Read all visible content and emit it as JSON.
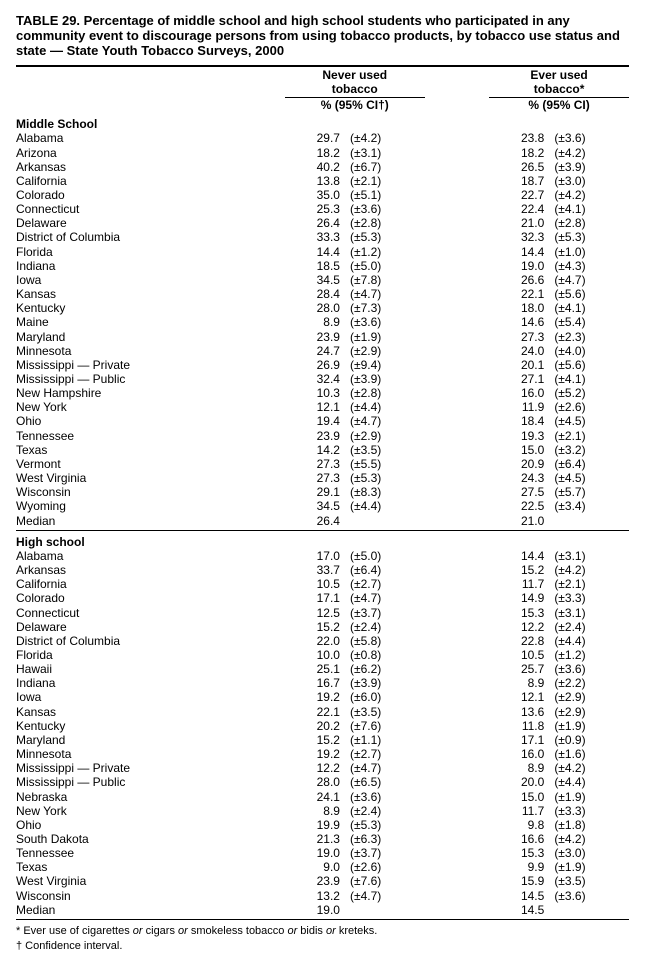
{
  "title": "TABLE 29. Percentage of middle school and high school students who participated in any community event to discourage persons from using tobacco products, by tobacco use status and state — State Youth Tobacco Surveys, 2000",
  "headers": {
    "never_label": "Never used tobacco",
    "ever_label": "Ever used tobacco*",
    "never_sub": "% (95% CI†)",
    "ever_sub": "% (95% CI)"
  },
  "sections": [
    {
      "label": "Middle School",
      "rows": [
        {
          "state": "Alabama",
          "np": "29.7",
          "nc": "(±4.2)",
          "ep": "23.8",
          "ec": "(±3.6)"
        },
        {
          "state": "Arizona",
          "np": "18.2",
          "nc": "(±3.1)",
          "ep": "18.2",
          "ec": "(±4.2)"
        },
        {
          "state": "Arkansas",
          "np": "40.2",
          "nc": "(±6.7)",
          "ep": "26.5",
          "ec": "(±3.9)"
        },
        {
          "state": "California",
          "np": "13.8",
          "nc": "(±2.1)",
          "ep": "18.7",
          "ec": "(±3.0)"
        },
        {
          "state": "Colorado",
          "np": "35.0",
          "nc": "(±5.1)",
          "ep": "22.7",
          "ec": "(±4.2)"
        },
        {
          "state": "Connecticut",
          "np": "25.3",
          "nc": "(±3.6)",
          "ep": "22.4",
          "ec": "(±4.1)"
        },
        {
          "state": "Delaware",
          "np": "26.4",
          "nc": "(±2.8)",
          "ep": "21.0",
          "ec": "(±2.8)"
        },
        {
          "state": "District of Columbia",
          "np": "33.3",
          "nc": "(±5.3)",
          "ep": "32.3",
          "ec": "(±5.3)"
        },
        {
          "state": "Florida",
          "np": "14.4",
          "nc": "(±1.2)",
          "ep": "14.4",
          "ec": "(±1.0)"
        },
        {
          "state": "Indiana",
          "np": "18.5",
          "nc": "(±5.0)",
          "ep": "19.0",
          "ec": "(±4.3)"
        },
        {
          "state": "Iowa",
          "np": "34.5",
          "nc": "(±7.8)",
          "ep": "26.6",
          "ec": "(±4.7)"
        },
        {
          "state": "Kansas",
          "np": "28.4",
          "nc": "(±4.7)",
          "ep": "22.1",
          "ec": "(±5.6)"
        },
        {
          "state": "Kentucky",
          "np": "28.0",
          "nc": "(±7.3)",
          "ep": "18.0",
          "ec": "(±4.1)"
        },
        {
          "state": "Maine",
          "np": "8.9",
          "nc": "(±3.6)",
          "ep": "14.6",
          "ec": "(±5.4)"
        },
        {
          "state": "Maryland",
          "np": "23.9",
          "nc": "(±1.9)",
          "ep": "27.3",
          "ec": "(±2.3)"
        },
        {
          "state": "Minnesota",
          "np": "24.7",
          "nc": "(±2.9)",
          "ep": "24.0",
          "ec": "(±4.0)"
        },
        {
          "state": "Mississippi — Private",
          "np": "26.9",
          "nc": "(±9.4)",
          "ep": "20.1",
          "ec": "(±5.6)"
        },
        {
          "state": "Mississippi — Public",
          "np": "32.4",
          "nc": "(±3.9)",
          "ep": "27.1",
          "ec": "(±4.1)"
        },
        {
          "state": "New Hampshire",
          "np": "10.3",
          "nc": "(±2.8)",
          "ep": "16.0",
          "ec": "(±5.2)"
        },
        {
          "state": "New York",
          "np": "12.1",
          "nc": "(±4.4)",
          "ep": "11.9",
          "ec": "(±2.6)"
        },
        {
          "state": "Ohio",
          "np": "19.4",
          "nc": "(±4.7)",
          "ep": "18.4",
          "ec": "(±4.5)"
        },
        {
          "state": "Tennessee",
          "np": "23.9",
          "nc": "(±2.9)",
          "ep": "19.3",
          "ec": "(±2.1)"
        },
        {
          "state": "Texas",
          "np": "14.2",
          "nc": "(±3.5)",
          "ep": "15.0",
          "ec": "(±3.2)"
        },
        {
          "state": "Vermont",
          "np": "27.3",
          "nc": "(±5.5)",
          "ep": "20.9",
          "ec": "(±6.4)"
        },
        {
          "state": "West Virginia",
          "np": "27.3",
          "nc": "(±5.3)",
          "ep": "24.3",
          "ec": "(±4.5)"
        },
        {
          "state": "Wisconsin",
          "np": "29.1",
          "nc": "(±8.3)",
          "ep": "27.5",
          "ec": "(±5.7)"
        },
        {
          "state": "Wyoming",
          "np": "34.5",
          "nc": "(±4.4)",
          "ep": "22.5",
          "ec": "(±3.4)"
        },
        {
          "state": "Median",
          "np": "26.4",
          "nc": "",
          "ep": "21.0",
          "ec": ""
        }
      ]
    },
    {
      "label": "High school",
      "rows": [
        {
          "state": "Alabama",
          "np": "17.0",
          "nc": "(±5.0)",
          "ep": "14.4",
          "ec": "(±3.1)"
        },
        {
          "state": "Arkansas",
          "np": "33.7",
          "nc": "(±6.4)",
          "ep": "15.2",
          "ec": "(±4.2)"
        },
        {
          "state": "California",
          "np": "10.5",
          "nc": "(±2.7)",
          "ep": "11.7",
          "ec": "(±2.1)"
        },
        {
          "state": "Colorado",
          "np": "17.1",
          "nc": "(±4.7)",
          "ep": "14.9",
          "ec": "(±3.3)"
        },
        {
          "state": "Connecticut",
          "np": "12.5",
          "nc": "(±3.7)",
          "ep": "15.3",
          "ec": "(±3.1)"
        },
        {
          "state": "Delaware",
          "np": "15.2",
          "nc": "(±2.4)",
          "ep": "12.2",
          "ec": "(±2.4)"
        },
        {
          "state": "District of Columbia",
          "np": "22.0",
          "nc": "(±5.8)",
          "ep": "22.8",
          "ec": "(±4.4)"
        },
        {
          "state": "Florida",
          "np": "10.0",
          "nc": "(±0.8)",
          "ep": "10.5",
          "ec": "(±1.2)"
        },
        {
          "state": "Hawaii",
          "np": "25.1",
          "nc": "(±6.2)",
          "ep": "25.7",
          "ec": "(±3.6)"
        },
        {
          "state": "Indiana",
          "np": "16.7",
          "nc": "(±3.9)",
          "ep": "8.9",
          "ec": "(±2.2)"
        },
        {
          "state": "Iowa",
          "np": "19.2",
          "nc": "(±6.0)",
          "ep": "12.1",
          "ec": "(±2.9)"
        },
        {
          "state": "Kansas",
          "np": "22.1",
          "nc": "(±3.5)",
          "ep": "13.6",
          "ec": "(±2.9)"
        },
        {
          "state": "Kentucky",
          "np": "20.2",
          "nc": "(±7.6)",
          "ep": "11.8",
          "ec": "(±1.9)"
        },
        {
          "state": "Maryland",
          "np": "15.2",
          "nc": "(±1.1)",
          "ep": "17.1",
          "ec": "(±0.9)"
        },
        {
          "state": "Minnesota",
          "np": "19.2",
          "nc": "(±2.7)",
          "ep": "16.0",
          "ec": "(±1.6)"
        },
        {
          "state": "Mississippi — Private",
          "np": "12.2",
          "nc": "(±4.7)",
          "ep": "8.9",
          "ec": "(±4.2)"
        },
        {
          "state": "Mississippi — Public",
          "np": "28.0",
          "nc": "(±6.5)",
          "ep": "20.0",
          "ec": "(±4.4)"
        },
        {
          "state": "Nebraska",
          "np": "24.1",
          "nc": "(±3.6)",
          "ep": "15.0",
          "ec": "(±1.9)"
        },
        {
          "state": "New York",
          "np": "8.9",
          "nc": "(±2.4)",
          "ep": "11.7",
          "ec": "(±3.3)"
        },
        {
          "state": "Ohio",
          "np": "19.9",
          "nc": "(±5.3)",
          "ep": "9.8",
          "ec": "(±1.8)"
        },
        {
          "state": "South Dakota",
          "np": "21.3",
          "nc": "(±6.3)",
          "ep": "16.6",
          "ec": "(±4.2)"
        },
        {
          "state": "Tennessee",
          "np": "19.0",
          "nc": "(±3.7)",
          "ep": "15.3",
          "ec": "(±3.0)"
        },
        {
          "state": "Texas",
          "np": "9.0",
          "nc": "(±2.6)",
          "ep": "9.9",
          "ec": "(±1.9)"
        },
        {
          "state": "West Virginia",
          "np": "23.9",
          "nc": "(±7.6)",
          "ep": "15.9",
          "ec": "(±3.5)"
        },
        {
          "state": "Wisconsin",
          "np": "13.2",
          "nc": "(±4.7)",
          "ep": "14.5",
          "ec": "(±3.6)"
        },
        {
          "state": "Median",
          "np": "19.0",
          "nc": "",
          "ep": "14.5",
          "ec": ""
        }
      ]
    }
  ],
  "footnotes": {
    "star": "* Ever use of cigarettes ",
    "star_or1": "or",
    "star_mid1": " cigars ",
    "star_or2": "or",
    "star_mid2": " smokeless tobacco ",
    "star_or3": "or",
    "star_mid3": " bidis ",
    "star_or4": "or",
    "star_end": " kreteks.",
    "dagger": "† Confidence interval."
  }
}
